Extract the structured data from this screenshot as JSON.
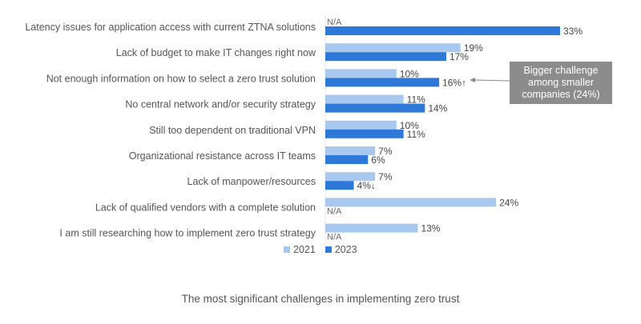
{
  "chart_data": {
    "type": "bar",
    "orientation": "horizontal",
    "title": "The most significant challenges in implementing zero trust",
    "xlabel": "",
    "ylabel": "",
    "xlim": [
      0,
      35
    ],
    "grid": false,
    "legend_position": "bottom",
    "categories": [
      "Latency issues for application access with current ZTNA solutions",
      "Lack of budget to make IT changes right now",
      "Not enough information on how to select a zero trust solution",
      "No central network and/or security strategy",
      "Still too dependent on traditional VPN",
      "Organizational resistance across IT teams",
      "Lack of manpower/resources",
      "Lack of qualified vendors with a complete solution",
      "I am still researching how to implement zero trust strategy"
    ],
    "series": [
      {
        "name": "2021",
        "color": "#a9c8f0",
        "values": [
          null,
          19,
          10,
          11,
          10,
          7,
          7,
          24,
          13
        ],
        "labels": [
          "N/A",
          "19%",
          "10%",
          "11%",
          "10%",
          "7%",
          "7%",
          "24%",
          "13%"
        ]
      },
      {
        "name": "2023",
        "color": "#2e78d8",
        "values": [
          33,
          17,
          16,
          14,
          11,
          6,
          4,
          null,
          null
        ],
        "labels": [
          "33%",
          "17%",
          "16%↑",
          "14%",
          "11%",
          "6%",
          "4%↓",
          "N/A",
          "N/A"
        ]
      }
    ],
    "annotations": [
      {
        "text": "Bigger challenge among smaller companies (24%)",
        "target_category": "Not enough information on how to select a zero trust solution",
        "target_series": "2023"
      }
    ]
  },
  "legend": {
    "items": [
      {
        "label": "2021",
        "color": "#a9c8f0"
      },
      {
        "label": "2023",
        "color": "#2e78d8"
      }
    ]
  },
  "callout": {
    "text": "Bigger challenge among smaller companies (24%)",
    "background": "#8c8c8c"
  },
  "caption": "The most significant challenges in implementing zero trust"
}
